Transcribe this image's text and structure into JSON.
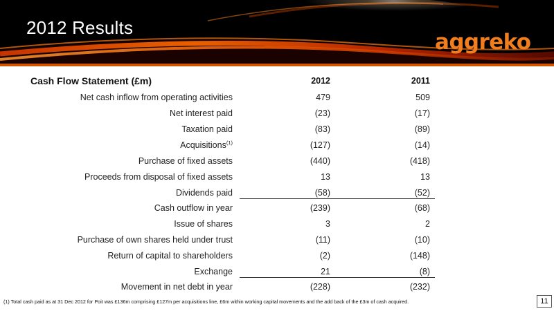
{
  "slide": {
    "title": "2012 Results",
    "logo_text": "aggreko",
    "brand_color": "#f07d1e",
    "page_number": "11"
  },
  "table": {
    "title": "Cash Flow Statement (£m)",
    "columns": [
      "2012",
      "2011"
    ],
    "rows": [
      {
        "label": "Net cash inflow from operating activities",
        "v2012": "479",
        "v2011": "509"
      },
      {
        "label": "Net interest paid",
        "v2012": "(23)",
        "v2011": "(17)"
      },
      {
        "label": "Taxation paid",
        "v2012": "(83)",
        "v2011": "(89)"
      },
      {
        "label": "Acquisitions",
        "sup": "(1)",
        "v2012": "(127)",
        "v2011": "(14)"
      },
      {
        "label": "Purchase of fixed assets",
        "v2012": "(440)",
        "v2011": "(418)"
      },
      {
        "label": "Proceeds from disposal of fixed assets",
        "v2012": "13",
        "v2011": "13"
      },
      {
        "label": "Dividends paid",
        "v2012": "(58)",
        "v2011": "(52)"
      },
      {
        "label": "Cash outflow in year",
        "v2012": "(239)",
        "v2011": "(68)"
      },
      {
        "label": "Issue of shares",
        "v2012": "3",
        "v2011": "2"
      },
      {
        "label": "Purchase of own shares held under trust",
        "v2012": "(11)",
        "v2011": "(10)"
      },
      {
        "label": "Return of capital to shareholders",
        "v2012": "(2)",
        "v2011": "(148)"
      },
      {
        "label": "Exchange",
        "v2012": "21",
        "v2011": "(8)"
      },
      {
        "label": "Movement in net debt in year",
        "v2012": "(228)",
        "v2011": "(232)"
      }
    ]
  },
  "footnote": "(1) Total cash paid as at 31 Dec 2012 for Poit was £136m comprising £127m per acquisitions line,  £6m within working capital movements and the add back of the £3m of cash acquired."
}
